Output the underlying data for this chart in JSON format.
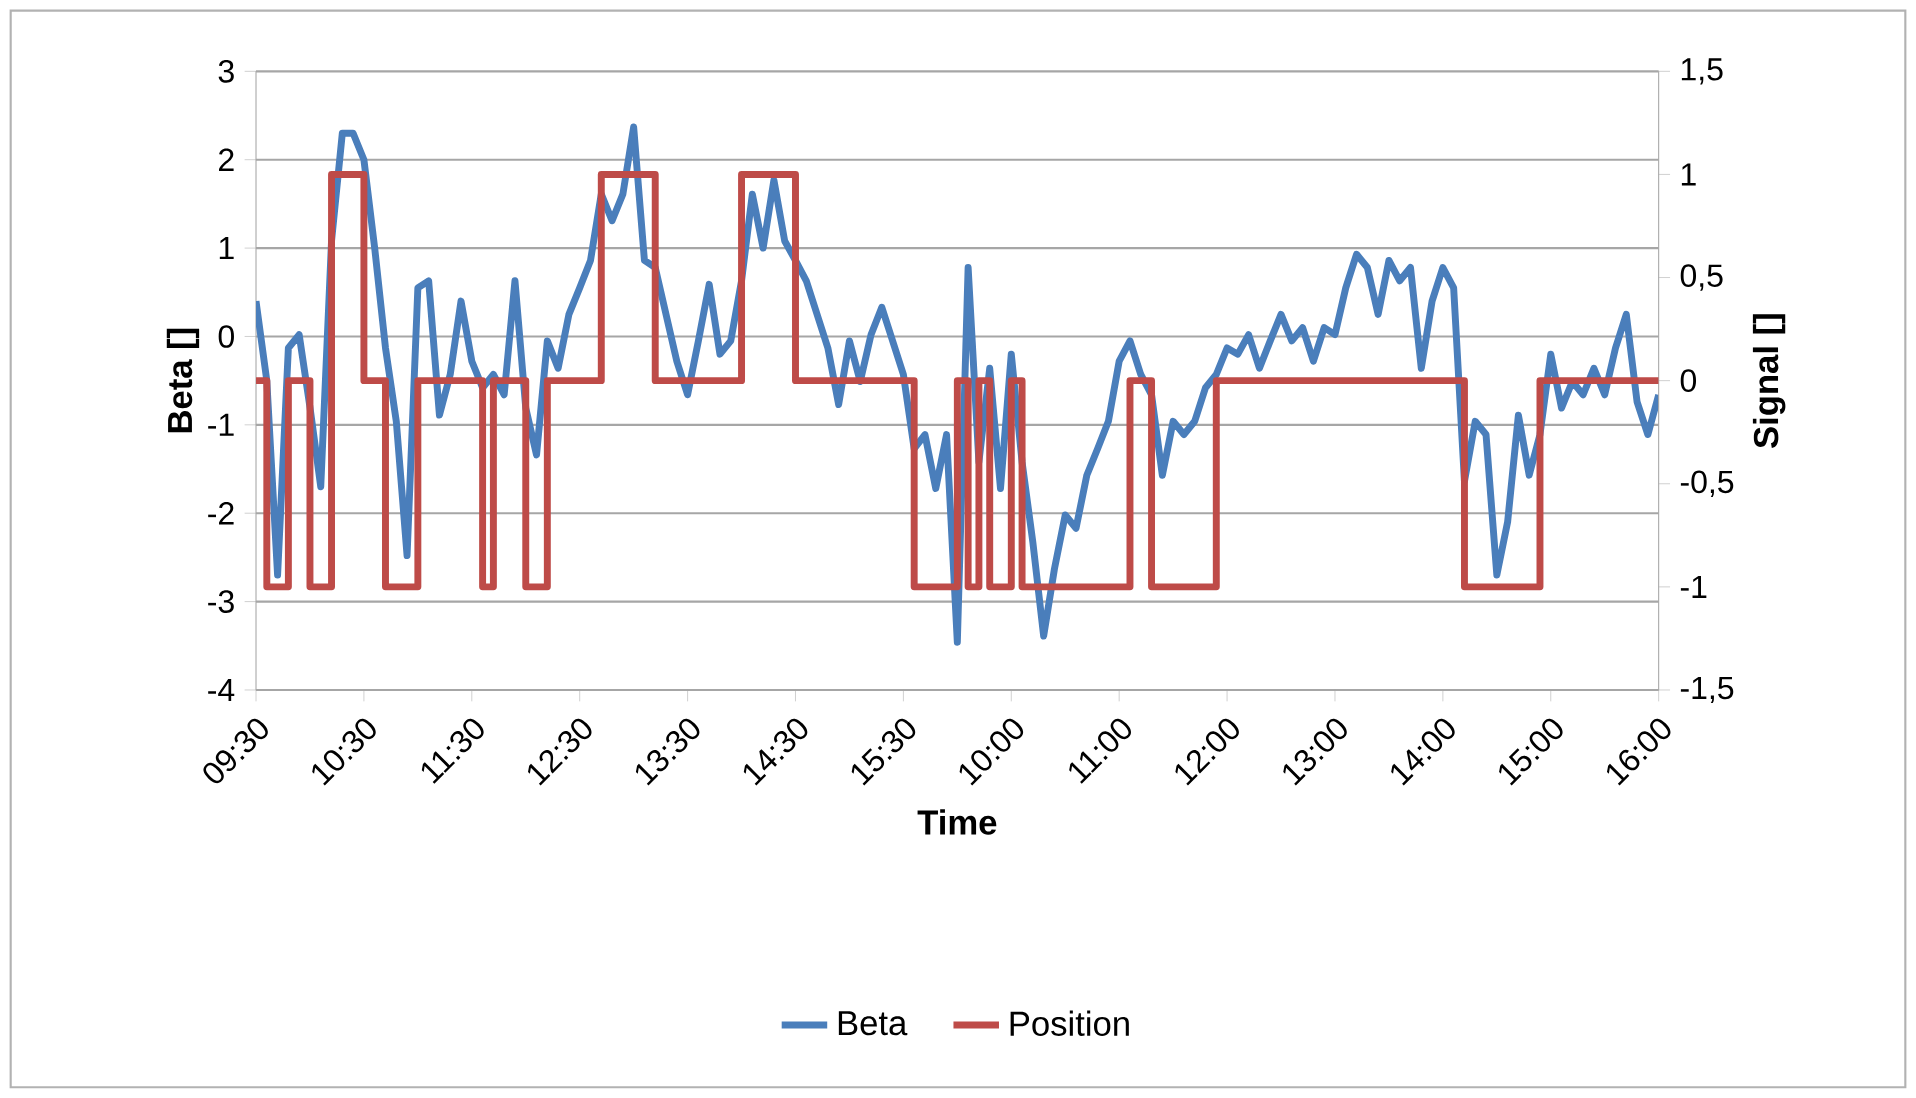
{
  "chart_data": {
    "type": "line",
    "xlabel": "Time",
    "ylabel": "Beta []",
    "y2label": "Signal []",
    "categories": [
      "09:30",
      null,
      null,
      null,
      null,
      null,
      null,
      null,
      null,
      null,
      "10:30",
      null,
      null,
      null,
      null,
      null,
      null,
      null,
      null,
      null,
      "11:30",
      null,
      null,
      null,
      null,
      null,
      null,
      null,
      null,
      null,
      "12:30",
      null,
      null,
      null,
      null,
      null,
      null,
      null,
      null,
      null,
      "13:30",
      null,
      null,
      null,
      null,
      null,
      null,
      null,
      null,
      null,
      "14:30",
      null,
      null,
      null,
      null,
      null,
      null,
      null,
      null,
      null,
      "15:30",
      null,
      null,
      null,
      null,
      null,
      null,
      null,
      null,
      null,
      "10:00",
      null,
      null,
      null,
      null,
      null,
      null,
      null,
      null,
      null,
      "11:00",
      null,
      null,
      null,
      null,
      null,
      null,
      null,
      null,
      null,
      "12:00",
      null,
      null,
      null,
      null,
      null,
      null,
      null,
      null,
      null,
      "13:00",
      null,
      null,
      null,
      null,
      null,
      null,
      null,
      null,
      null,
      "14:00",
      null,
      null,
      null,
      null,
      null,
      null,
      null,
      null,
      null,
      "15:00",
      null,
      null,
      null,
      null,
      null,
      null,
      null,
      null,
      null,
      "16:00"
    ],
    "ylim": [
      -4,
      3
    ],
    "yticks": [
      -4,
      -3,
      -2,
      -1,
      0,
      1,
      2,
      3
    ],
    "y2lim": [
      -1.5,
      1.5
    ],
    "y2ticks": [
      {
        "value": -1.5,
        "label": "-1,5"
      },
      -1,
      {
        "value": -0.5,
        "label": "-0,5"
      },
      0,
      {
        "value": 0.5,
        "label": "0,5"
      },
      1,
      {
        "value": 1.5,
        "label": "1,5"
      }
    ],
    "grid": "y",
    "legend": "bottom",
    "line_style": "solid",
    "series": [
      {
        "name": "Beta",
        "color": "#4a7ebb",
        "values": [
          0.4,
          -0.5,
          -2.7,
          -0.13,
          0.02,
          -0.8,
          -1.7,
          1.08,
          2.3,
          2.3,
          2.0,
          1.0,
          -0.13,
          -0.96,
          -2.48,
          0.55,
          0.63,
          -0.89,
          -0.43,
          0.4,
          -0.28,
          -0.58,
          -0.43,
          -0.66,
          0.63,
          -0.81,
          -1.34,
          -0.05,
          -0.36,
          0.25,
          0.55,
          0.86,
          1.61,
          1.31,
          1.61,
          2.37,
          0.86,
          0.78,
          0.25,
          -0.28,
          -0.66,
          -0.05,
          0.59,
          -0.2,
          -0.05,
          0.63,
          1.61,
          1.0,
          1.77,
          1.08,
          0.86,
          0.63,
          0.25,
          -0.13,
          -0.77,
          -0.05,
          -0.51,
          0.02,
          0.33,
          -0.05,
          -0.43,
          -1.27,
          -1.11,
          -1.72,
          -1.11,
          -3.46,
          0.78,
          -1.42,
          -0.36,
          -1.72,
          -0.2,
          -1.42,
          -2.33,
          -3.39,
          -2.63,
          -2.02,
          -2.17,
          -1.57,
          -1.27,
          -0.96,
          -0.28,
          -0.05,
          -0.43,
          -0.66,
          -1.57,
          -0.96,
          -1.11,
          -0.96,
          -0.58,
          -0.43,
          -0.13,
          -0.2,
          0.02,
          -0.36,
          -0.05,
          0.25,
          -0.05,
          0.1,
          -0.28,
          0.1,
          0.02,
          0.55,
          0.93,
          0.78,
          0.25,
          0.86,
          0.63,
          0.78,
          -0.36,
          0.4,
          0.78,
          0.55,
          -1.64,
          -0.96,
          -1.11,
          -2.7,
          -2.1,
          -0.89,
          -1.57,
          -1.11,
          -0.2,
          -0.81,
          -0.51,
          -0.66,
          -0.36,
          -0.66,
          -0.13,
          0.25,
          -0.74,
          -1.11,
          -0.66
        ]
      },
      {
        "name": "Position",
        "color": "#be4b48",
        "type": "step",
        "axis": "y2",
        "values": [
          0,
          -1,
          -1,
          0,
          0,
          -1,
          -1,
          1,
          1,
          1,
          0,
          0,
          -1,
          -1,
          -1,
          0,
          0,
          0,
          0,
          0,
          0,
          -1,
          0,
          0,
          0,
          -1,
          -1,
          0,
          0,
          0,
          0,
          0,
          1,
          1,
          1,
          1,
          1,
          0,
          0,
          0,
          0,
          0,
          0,
          0,
          0,
          1,
          1,
          1,
          1,
          1,
          0,
          0,
          0,
          0,
          0,
          0,
          0,
          0,
          0,
          0,
          0,
          -1,
          -1,
          -1,
          -1,
          0,
          -1,
          0,
          -1,
          -1,
          0,
          -1,
          -1,
          -1,
          -1,
          -1,
          -1,
          -1,
          -1,
          -1,
          -1,
          0,
          0,
          -1,
          -1,
          -1,
          -1,
          -1,
          -1,
          0,
          0,
          0,
          0,
          0,
          0,
          0,
          0,
          0,
          0,
          0,
          0,
          0,
          0,
          0,
          0,
          0,
          0,
          0,
          0,
          0,
          0,
          0,
          -1,
          -1,
          -1,
          -1,
          -1,
          -1,
          -1,
          0,
          0,
          0,
          0,
          0,
          0,
          0,
          0,
          0,
          0,
          0,
          0
        ]
      }
    ]
  }
}
